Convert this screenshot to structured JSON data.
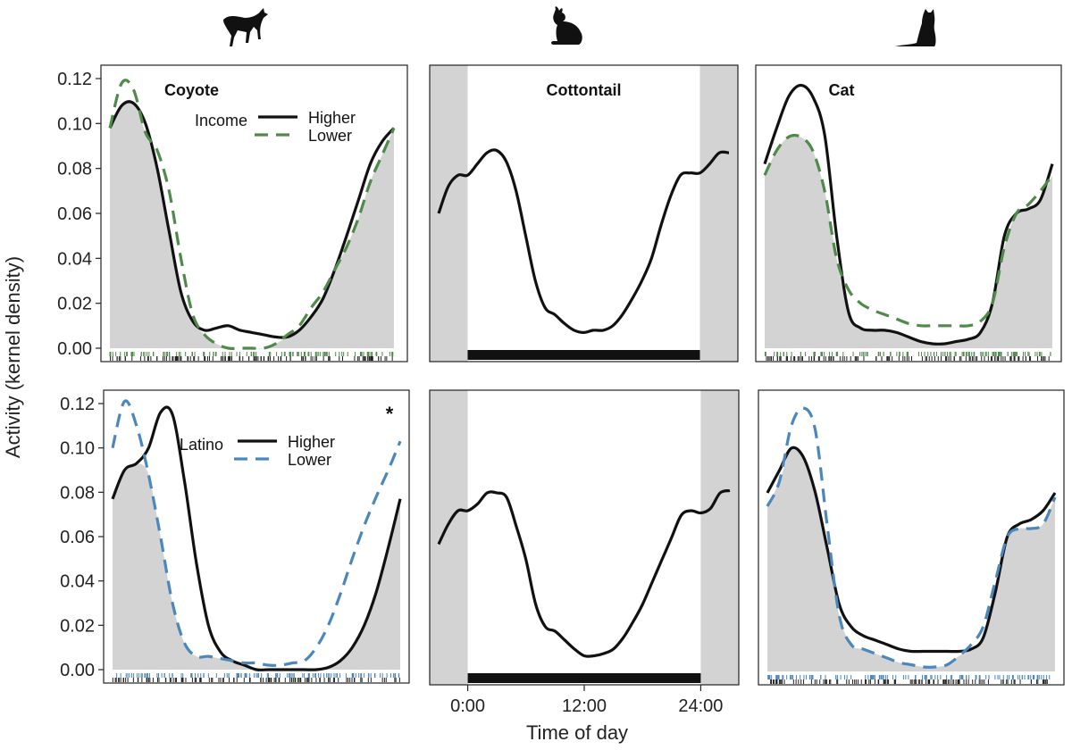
{
  "figure": {
    "ylabel": "Activity (kernel density)",
    "xlabel": "Time of day",
    "yticks": [
      "0.00",
      "0.02",
      "0.04",
      "0.06",
      "0.08",
      "0.10",
      "0.12"
    ],
    "xticks": [
      "0:00",
      "12:00",
      "24:00"
    ],
    "colors": {
      "higher": "#111111",
      "income_lower": "#4f8a4a",
      "latino_lower": "#4b87bd",
      "shade": "#d3d3d3",
      "rug_income": "#4f8a4a",
      "rug_latino": "#4b87bd"
    },
    "icons": [
      "coyote-icon",
      "cottontail-icon",
      "cat-icon"
    ]
  },
  "chart_data": [
    {
      "panel": "coyote-income",
      "type": "line",
      "title": "Coyote",
      "legend_title": "Income",
      "legend": [
        "Higher",
        "Lower"
      ],
      "legend_placement": "top-right",
      "ylim": [
        0,
        0.12
      ],
      "xlim": [
        0,
        24
      ],
      "series": [
        {
          "name": "Higher",
          "style": "solid",
          "x": [
            0,
            1,
            2,
            3,
            4,
            5,
            6,
            7,
            8,
            9,
            10,
            11,
            12,
            13,
            14,
            15,
            16,
            17,
            18,
            19,
            20,
            21,
            22,
            23,
            24
          ],
          "values": [
            0.098,
            0.108,
            0.109,
            0.1,
            0.08,
            0.052,
            0.025,
            0.012,
            0.008,
            0.009,
            0.01,
            0.008,
            0.007,
            0.006,
            0.005,
            0.005,
            0.008,
            0.014,
            0.022,
            0.035,
            0.05,
            0.066,
            0.082,
            0.092,
            0.098
          ]
        },
        {
          "name": "Lower",
          "style": "dashed",
          "x": [
            0,
            1,
            2,
            3,
            4,
            5,
            6,
            7,
            8,
            9,
            10,
            11,
            12,
            13,
            14,
            15,
            16,
            17,
            18,
            19,
            20,
            21,
            22,
            23,
            24
          ],
          "values": [
            0.098,
            0.118,
            0.115,
            0.096,
            0.088,
            0.07,
            0.04,
            0.015,
            0.006,
            0.002,
            0.0,
            0.0,
            0.0,
            0.0,
            0.002,
            0.006,
            0.01,
            0.018,
            0.025,
            0.035,
            0.045,
            0.058,
            0.074,
            0.086,
            0.098
          ]
        }
      ]
    },
    {
      "panel": "cottontail-top",
      "type": "line",
      "title": "Cottontail",
      "ylim": [
        0,
        0.12
      ],
      "xlim": [
        -3,
        27
      ],
      "series": [
        {
          "style": "solid",
          "x": [
            -3,
            -2,
            -1,
            0,
            1,
            2,
            3,
            4,
            5,
            6,
            7,
            8,
            9,
            10,
            11,
            12,
            13,
            14,
            15,
            16,
            17,
            18,
            19,
            20,
            21,
            22,
            23,
            24,
            25,
            26,
            27
          ],
          "values": [
            0.06,
            0.072,
            0.077,
            0.077,
            0.082,
            0.087,
            0.088,
            0.083,
            0.07,
            0.05,
            0.03,
            0.018,
            0.015,
            0.011,
            0.008,
            0.007,
            0.008,
            0.008,
            0.01,
            0.015,
            0.022,
            0.03,
            0.04,
            0.055,
            0.068,
            0.077,
            0.078,
            0.078,
            0.082,
            0.087,
            0.087
          ]
        }
      ]
    },
    {
      "panel": "cat-income",
      "type": "line",
      "title": "Cat",
      "ylim": [
        0,
        0.12
      ],
      "xlim": [
        0,
        24
      ],
      "series": [
        {
          "name": "Higher",
          "style": "solid",
          "x": [
            0,
            1,
            2,
            3,
            4,
            5,
            6,
            7,
            8,
            9,
            10,
            11,
            12,
            13,
            14,
            15,
            16,
            17,
            18,
            19,
            20,
            21,
            22,
            23,
            24
          ],
          "values": [
            0.082,
            0.098,
            0.112,
            0.117,
            0.112,
            0.095,
            0.05,
            0.016,
            0.009,
            0.008,
            0.008,
            0.007,
            0.005,
            0.003,
            0.002,
            0.002,
            0.003,
            0.004,
            0.007,
            0.02,
            0.05,
            0.06,
            0.062,
            0.066,
            0.082
          ]
        },
        {
          "name": "Lower",
          "style": "dashed",
          "x": [
            0,
            1,
            2,
            3,
            4,
            5,
            6,
            7,
            8,
            9,
            10,
            11,
            12,
            13,
            14,
            15,
            16,
            17,
            18,
            19,
            20,
            21,
            22,
            23,
            24
          ],
          "values": [
            0.077,
            0.088,
            0.094,
            0.094,
            0.088,
            0.07,
            0.04,
            0.026,
            0.02,
            0.017,
            0.015,
            0.013,
            0.011,
            0.01,
            0.01,
            0.01,
            0.01,
            0.01,
            0.012,
            0.02,
            0.045,
            0.06,
            0.064,
            0.07,
            0.077
          ]
        }
      ]
    },
    {
      "panel": "coyote-latino",
      "type": "line",
      "legend_title": "Latino",
      "legend": [
        "Higher",
        "Lower"
      ],
      "legend_placement": "top-right",
      "annotation": "*",
      "ylim": [
        0,
        0.12
      ],
      "xlim": [
        0,
        24
      ],
      "series": [
        {
          "name": "Higher",
          "style": "solid",
          "x": [
            0,
            1,
            2,
            3,
            4,
            5,
            6,
            7,
            8,
            9,
            10,
            11,
            12,
            13,
            14,
            15,
            16,
            17,
            18,
            19,
            20,
            21,
            22,
            23,
            24
          ],
          "values": [
            0.077,
            0.09,
            0.093,
            0.1,
            0.116,
            0.115,
            0.085,
            0.048,
            0.02,
            0.008,
            0.004,
            0.002,
            0.0,
            0.0,
            0.0,
            0.0,
            0.0,
            0.0,
            0.001,
            0.004,
            0.01,
            0.02,
            0.035,
            0.055,
            0.077
          ]
        },
        {
          "name": "Lower",
          "style": "dashed",
          "x": [
            0,
            1,
            2,
            3,
            4,
            5,
            6,
            7,
            8,
            9,
            10,
            11,
            12,
            13,
            14,
            15,
            16,
            17,
            18,
            19,
            20,
            21,
            22,
            23,
            24
          ],
          "values": [
            0.1,
            0.121,
            0.11,
            0.088,
            0.06,
            0.03,
            0.012,
            0.006,
            0.006,
            0.005,
            0.004,
            0.003,
            0.003,
            0.002,
            0.002,
            0.003,
            0.004,
            0.01,
            0.02,
            0.034,
            0.05,
            0.065,
            0.078,
            0.09,
            0.103
          ]
        }
      ]
    },
    {
      "panel": "cottontail-bottom",
      "type": "line",
      "ylim": [
        0,
        0.12
      ],
      "xlim": [
        -3,
        27
      ],
      "series": [
        {
          "style": "solid",
          "x": [
            -3,
            -2,
            -1,
            0,
            1,
            2,
            3,
            4,
            5,
            6,
            7,
            8,
            9,
            10,
            11,
            12,
            13,
            14,
            15,
            16,
            17,
            18,
            19,
            20,
            21,
            22,
            23,
            24,
            25,
            26,
            27
          ],
          "values": [
            0.057,
            0.066,
            0.072,
            0.072,
            0.075,
            0.08,
            0.08,
            0.078,
            0.065,
            0.05,
            0.03,
            0.02,
            0.018,
            0.014,
            0.01,
            0.007,
            0.007,
            0.008,
            0.01,
            0.015,
            0.022,
            0.03,
            0.04,
            0.05,
            0.06,
            0.07,
            0.072,
            0.071,
            0.073,
            0.08,
            0.081
          ]
        }
      ]
    },
    {
      "panel": "cat-latino",
      "type": "line",
      "ylim": [
        0,
        0.12
      ],
      "xlim": [
        0,
        24
      ],
      "series": [
        {
          "name": "Higher",
          "style": "solid",
          "x": [
            0,
            1,
            2,
            3,
            4,
            5,
            6,
            7,
            8,
            9,
            10,
            11,
            12,
            13,
            14,
            15,
            16,
            17,
            18,
            19,
            20,
            21,
            22,
            23,
            24
          ],
          "values": [
            0.08,
            0.09,
            0.1,
            0.096,
            0.08,
            0.055,
            0.03,
            0.02,
            0.016,
            0.014,
            0.012,
            0.01,
            0.009,
            0.009,
            0.009,
            0.009,
            0.009,
            0.01,
            0.015,
            0.035,
            0.06,
            0.066,
            0.068,
            0.072,
            0.08
          ]
        },
        {
          "name": "Lower",
          "style": "dashed",
          "x": [
            0,
            1,
            2,
            3,
            4,
            5,
            6,
            7,
            8,
            9,
            10,
            11,
            12,
            13,
            14,
            15,
            16,
            17,
            18,
            19,
            20,
            21,
            22,
            23,
            24
          ],
          "values": [
            0.074,
            0.085,
            0.11,
            0.118,
            0.108,
            0.065,
            0.025,
            0.012,
            0.01,
            0.008,
            0.006,
            0.004,
            0.003,
            0.002,
            0.002,
            0.003,
            0.007,
            0.012,
            0.02,
            0.04,
            0.06,
            0.064,
            0.064,
            0.066,
            0.078
          ]
        }
      ]
    }
  ]
}
